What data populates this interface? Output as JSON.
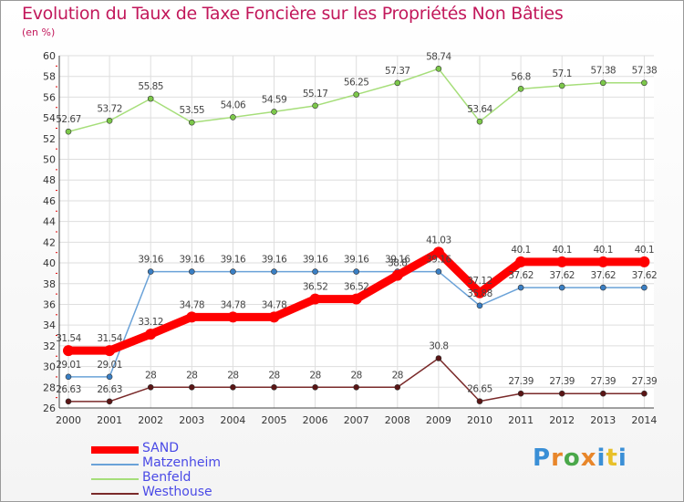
{
  "header": {
    "title": "Evolution du Taux de Taxe Foncière sur les Propriétés Non Bâties",
    "unit": "(en %)"
  },
  "logo": {
    "text": "Proxiti",
    "colors": [
      "#3a8fd6",
      "#e8862a",
      "#4aa84a",
      "#e8862a",
      "#3a8fd6",
      "#e8c02a",
      "#3a8fd6"
    ]
  },
  "chart_data": {
    "type": "line",
    "title": "Evolution du Taux de Taxe Foncière sur les Propriétés Non Bâties",
    "ylabel": "(en %)",
    "xlabel": "",
    "ylim": [
      26,
      60
    ],
    "yticks": [
      26,
      28,
      30,
      32,
      34,
      36,
      38,
      40,
      42,
      44,
      46,
      48,
      50,
      52,
      54,
      56,
      58,
      60
    ],
    "grid": true,
    "legend_position": "bottom-left",
    "categories": [
      "2000",
      "2001",
      "2002",
      "2003",
      "2004",
      "2005",
      "2006",
      "2007",
      "2008",
      "2009",
      "2010",
      "2011",
      "2012",
      "2013",
      "2014"
    ],
    "series": [
      {
        "name": "SAND",
        "color": "#ff0000",
        "marker": "#ff0000",
        "width": 9,
        "values": [
          31.54,
          31.54,
          33.12,
          34.78,
          34.78,
          34.78,
          36.52,
          36.52,
          38.8,
          41.03,
          37.12,
          40.1,
          40.1,
          40.1,
          40.1
        ],
        "labels": [
          "31.54",
          "31.54",
          "33.12",
          "34.78",
          "34.78",
          "34.78",
          "36.52",
          "36.52",
          "38.8",
          "41.03",
          "37.12",
          "40.1",
          "40.1",
          "40.1",
          "40.1"
        ]
      },
      {
        "name": "Matzenheim",
        "color": "#6aa2d8",
        "marker": "#3a7fc4",
        "width": 1.5,
        "values": [
          29.01,
          29.01,
          39.16,
          39.16,
          39.16,
          39.16,
          39.16,
          39.16,
          39.16,
          39.16,
          35.88,
          37.62,
          37.62,
          37.62,
          37.62
        ],
        "labels": [
          "29.01",
          "29.01",
          "39.16",
          "39.16",
          "39.16",
          "39.16",
          "39.16",
          "39.16",
          "39.16",
          "39.16",
          "35.88",
          "37.62",
          "37.62",
          "37.62",
          "37.62"
        ]
      },
      {
        "name": "Benfeld",
        "color": "#a6de7a",
        "marker": "#7cc84a",
        "width": 1.5,
        "values": [
          52.67,
          53.72,
          55.85,
          53.55,
          54.06,
          54.59,
          55.17,
          56.25,
          57.37,
          58.74,
          53.64,
          56.8,
          57.1,
          57.38,
          57.38
        ],
        "labels": [
          "52.67",
          "53.72",
          "55.85",
          "53.55",
          "54.06",
          "54.59",
          "55.17",
          "56.25",
          "57.37",
          "58.74",
          "53.64",
          "56.8",
          "57.1",
          "57.38",
          "57.38"
        ]
      },
      {
        "name": "Westhouse",
        "color": "#7a2a2a",
        "marker": "#5a1515",
        "width": 1.5,
        "values": [
          26.63,
          26.63,
          28,
          28,
          28,
          28,
          28,
          28,
          28,
          30.8,
          26.65,
          27.39,
          27.39,
          27.39,
          27.39
        ],
        "labels": [
          "26.63",
          "26.63",
          "28",
          "28",
          "28",
          "28",
          "28",
          "28",
          "28",
          "30.8",
          "26.65",
          "27.39",
          "27.39",
          "27.39",
          "27.39"
        ]
      }
    ]
  }
}
